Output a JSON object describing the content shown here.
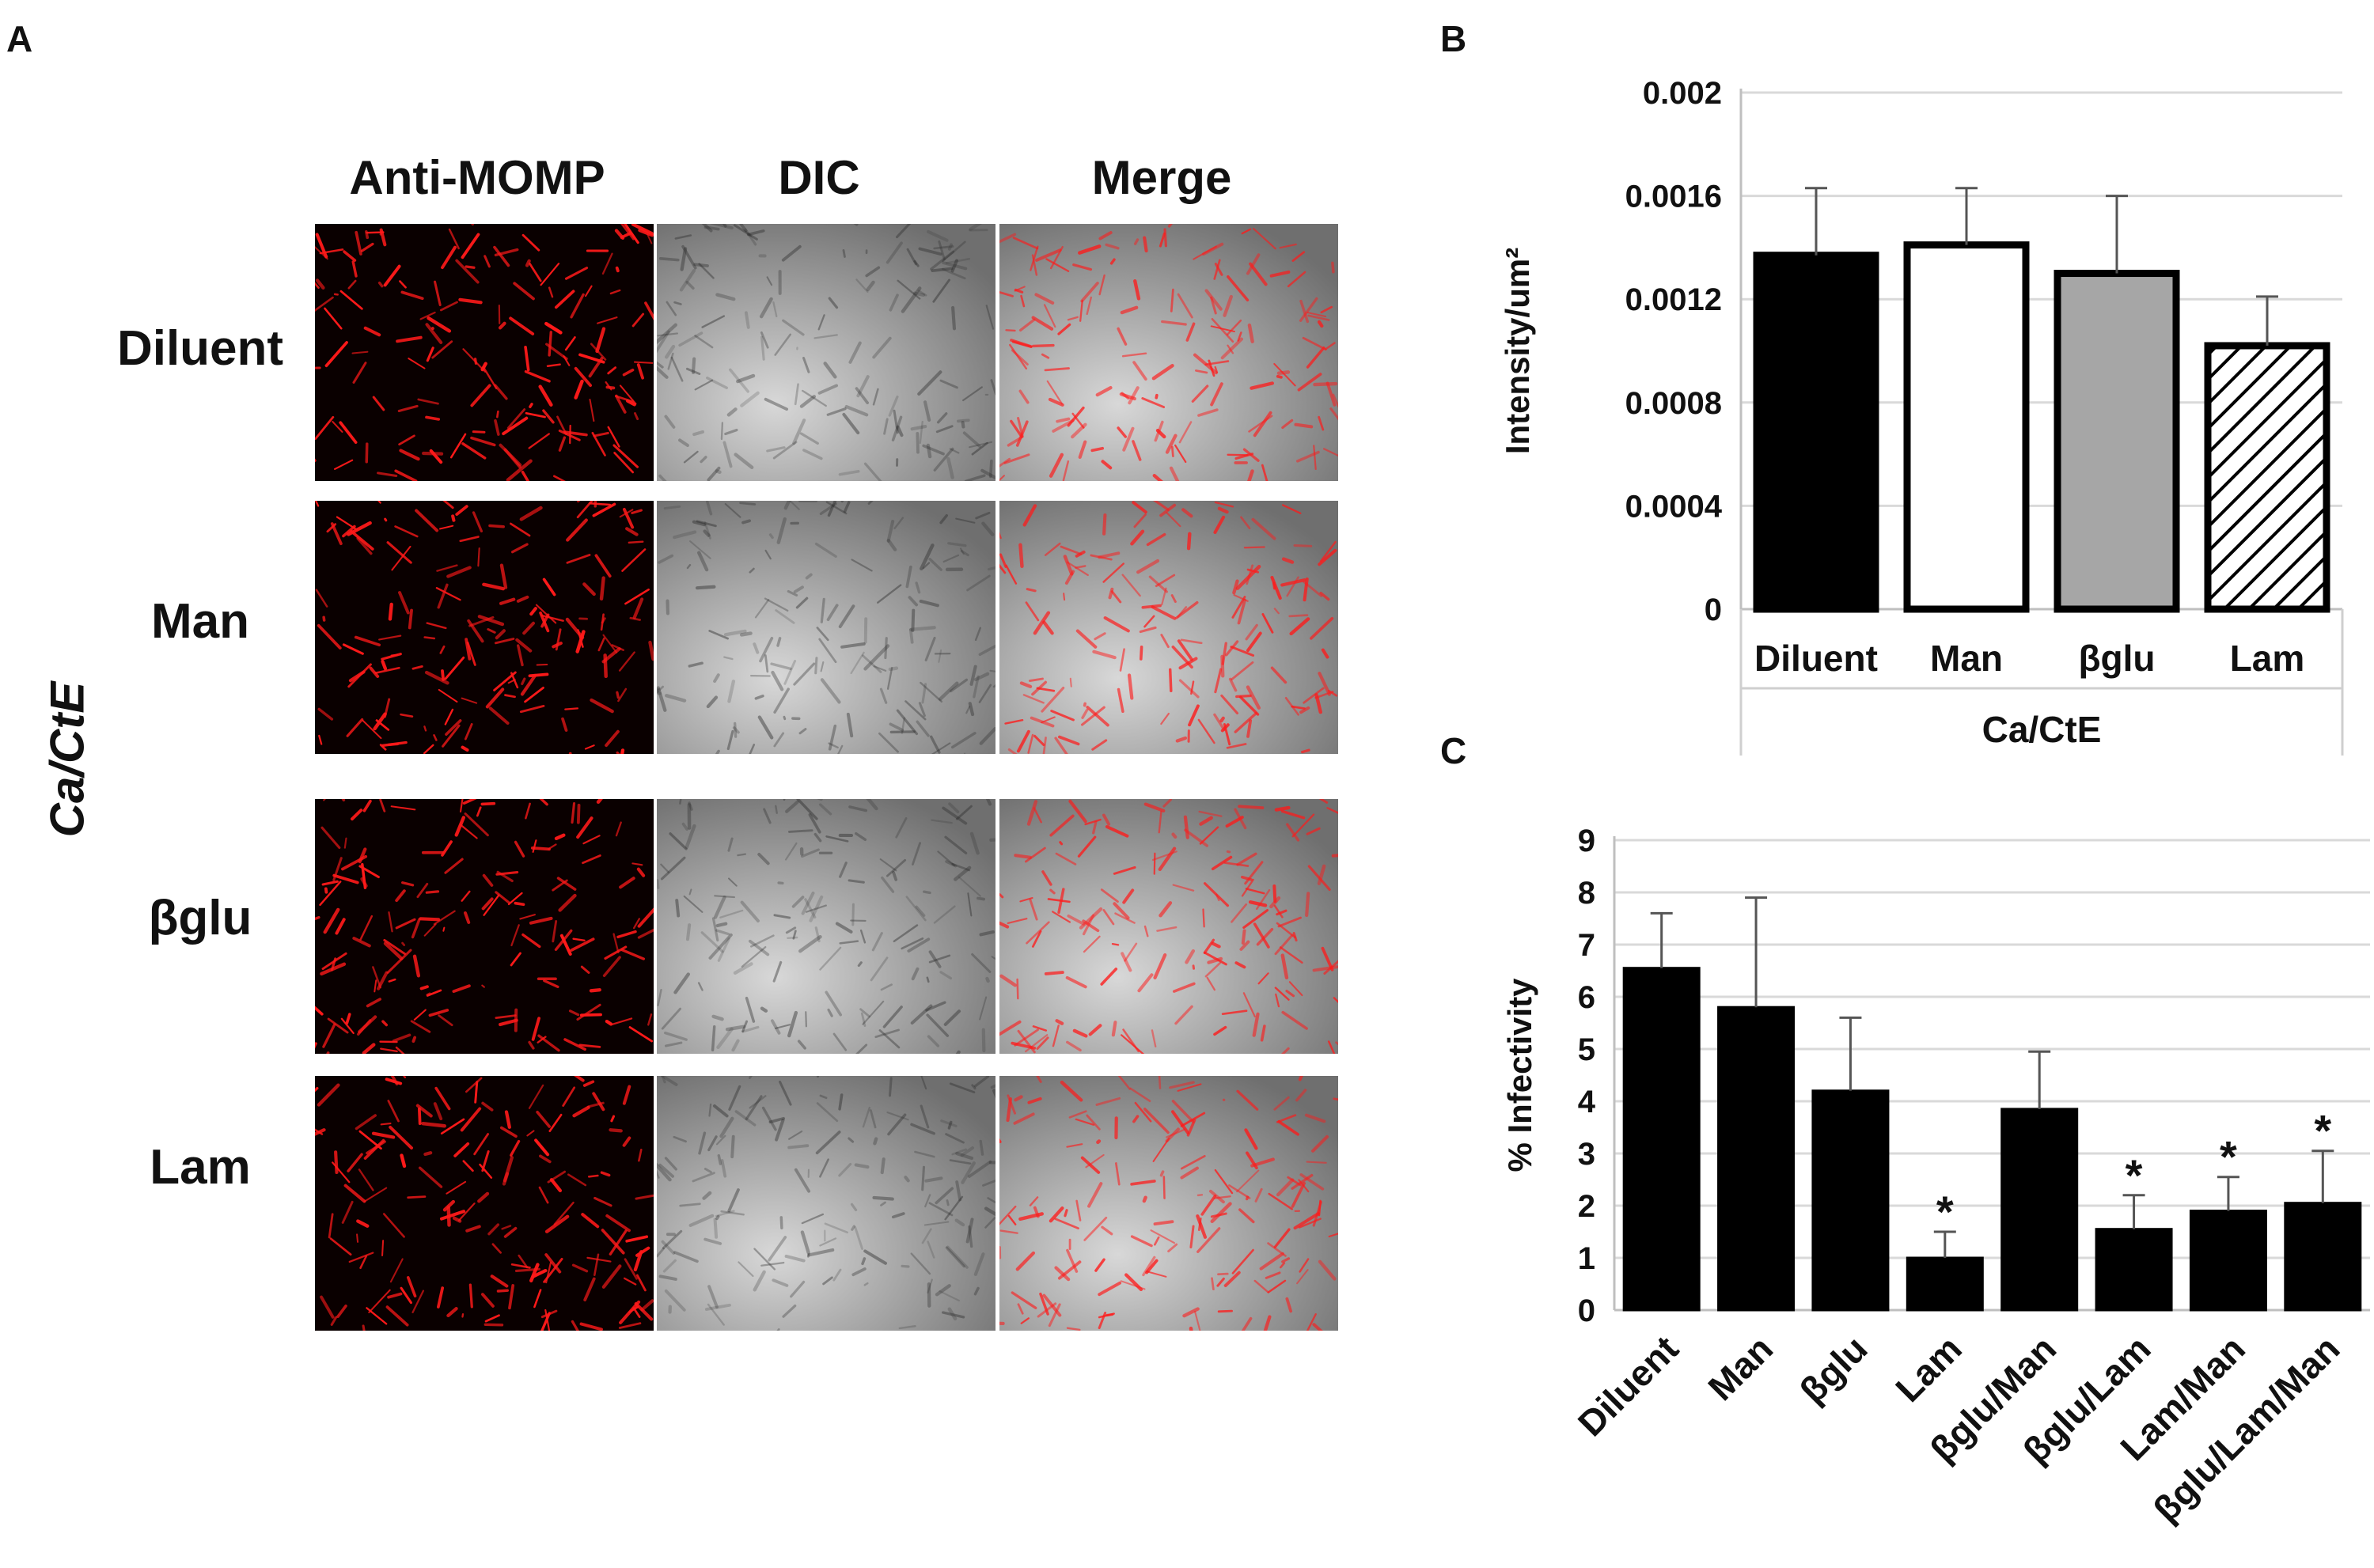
{
  "figure": {
    "panel_a": {
      "letter": "A",
      "columns": [
        "Anti-MOMP",
        "DIC",
        "Merge"
      ],
      "rows": [
        "Diluent",
        "Man",
        "βglu",
        "Lam"
      ],
      "side_label": "Ca/CtE",
      "colors": {
        "fluorescence": "#ff1a1a",
        "background_dark": "#0a0000",
        "dic_gray": "#b8b8b8"
      }
    },
    "panel_b": {
      "letter": "B"
    },
    "panel_c": {
      "letter": "C"
    }
  },
  "chart_data": [
    {
      "type": "bar",
      "categories": [
        "Diluent",
        "Man",
        "βglu",
        "Lam"
      ],
      "values": [
        0.00137,
        0.00141,
        0.0013,
        0.00102
      ],
      "errors": [
        0.00026,
        0.00022,
        0.0003,
        0.00019
      ],
      "bar_fills": [
        "#000000",
        "#ffffff",
        "#a6a6a6",
        "hatch"
      ],
      "group_label": "Ca/CtE",
      "title": "",
      "xlabel": "",
      "ylabel": "Intensity/um²",
      "ylim": [
        0,
        0.002
      ],
      "yticks": [
        "0",
        "0.0004",
        "0.0008",
        "0.0012",
        "0.0016",
        "0.002"
      ],
      "grid": true
    },
    {
      "type": "bar",
      "categories": [
        "Diluent",
        "Man",
        "βglu",
        "Lam",
        "βglu/Man",
        "βglu/Lam",
        "Lam/Man",
        "βglu/Lam/Man"
      ],
      "values": [
        6.55,
        5.8,
        4.2,
        1.0,
        3.85,
        1.55,
        1.9,
        2.05
      ],
      "errors": [
        1.05,
        2.1,
        1.4,
        0.5,
        1.1,
        0.65,
        0.65,
        1.0
      ],
      "significant": [
        false,
        false,
        false,
        true,
        false,
        true,
        true,
        true
      ],
      "significance_marker": "*",
      "bar_color": "#000000",
      "title": "",
      "xlabel": "",
      "ylabel": "% Infectivity",
      "ylim": [
        0,
        9
      ],
      "yticks": [
        "0",
        "1",
        "2",
        "3",
        "4",
        "5",
        "6",
        "7",
        "8",
        "9"
      ],
      "grid": true
    }
  ]
}
